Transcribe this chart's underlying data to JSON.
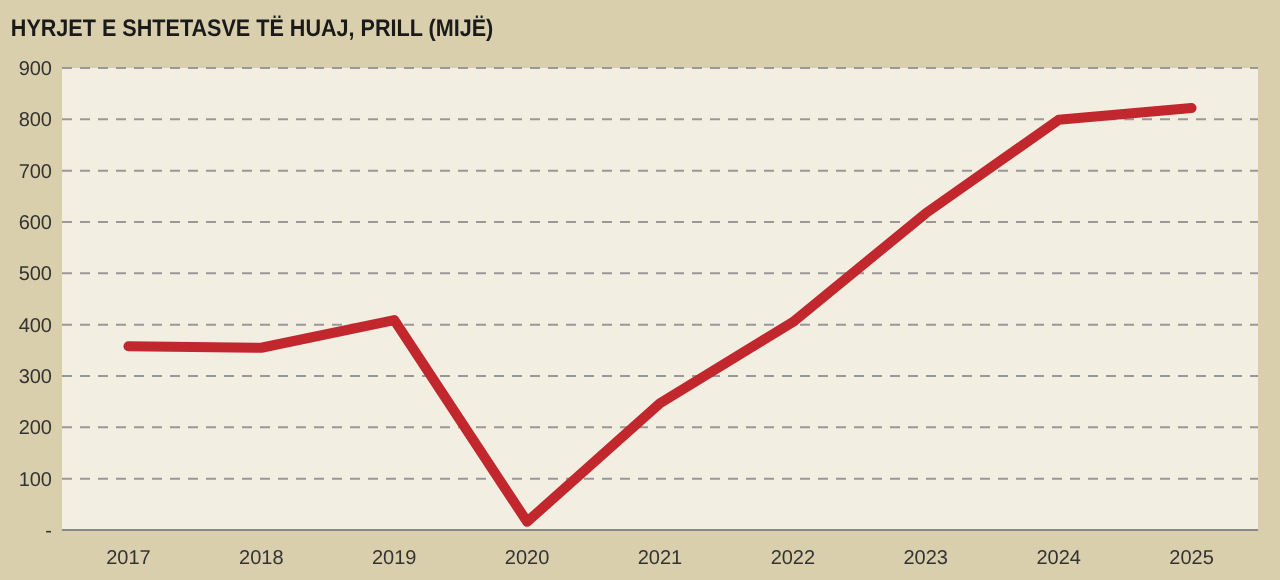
{
  "chart_data": {
    "type": "line",
    "title": "HYRJET E SHTETASVE TË HUAJ, PRILL (MIJË)",
    "categories": [
      "2017",
      "2018",
      "2019",
      "2020",
      "2021",
      "2022",
      "2023",
      "2024",
      "2025"
    ],
    "series": [
      {
        "color": "#c1272d",
        "values": [
          358,
          355,
          409,
          16,
          247,
          405,
          617,
          799,
          822
        ]
      }
    ],
    "ylim": [
      0,
      900
    ],
    "yticks": [
      {
        "value": 0,
        "label": "-"
      },
      100,
      200,
      300,
      400,
      500,
      600,
      700,
      800,
      900
    ],
    "grid": "y",
    "marker": "none",
    "line_style": "solid"
  }
}
